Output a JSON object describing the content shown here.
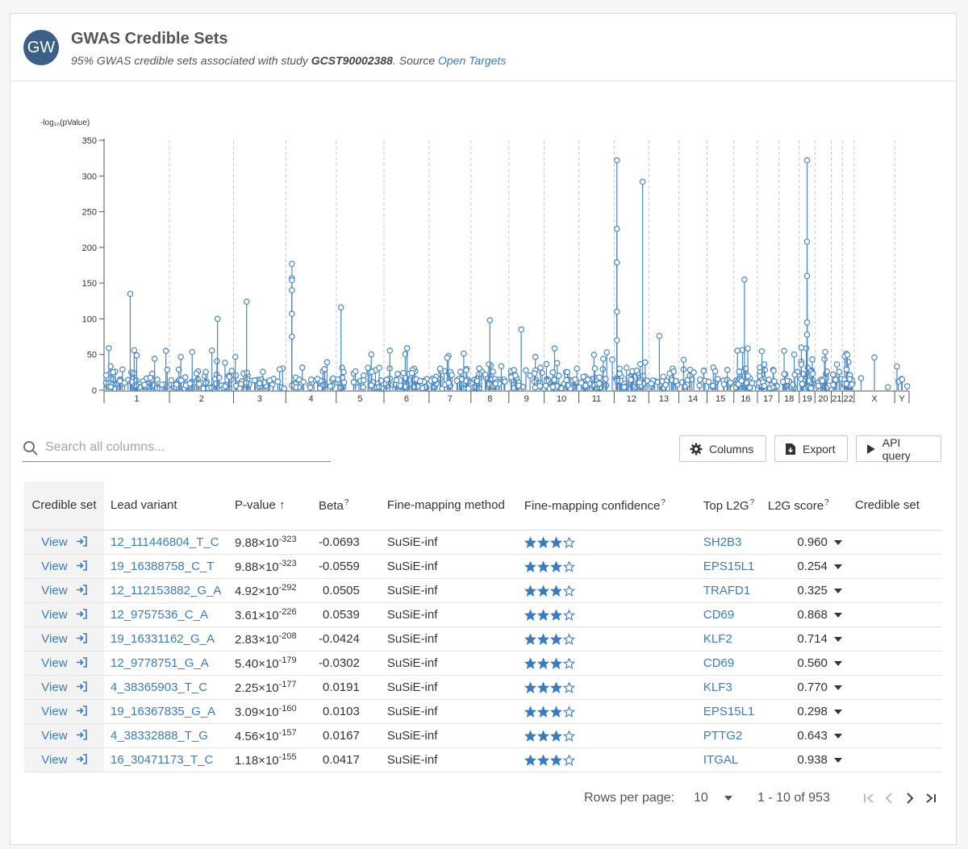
{
  "header": {
    "avatar_text": "GW",
    "title": "GWAS Credible Sets",
    "subtitle_prefix": "95% GWAS credible sets associated with study ",
    "study_id": "GCST90002388",
    "subtitle_source": ". Source ",
    "source_link": "Open Targets"
  },
  "chart_data": {
    "type": "scatter",
    "title": "",
    "ylabel": "-log₁₀(pValue)",
    "ylim": [
      0,
      350
    ],
    "yticks": [
      0,
      50,
      100,
      150,
      200,
      250,
      300,
      350
    ],
    "chromosomes": [
      "1",
      "2",
      "3",
      "4",
      "5",
      "6",
      "7",
      "8",
      "9",
      "10",
      "11",
      "12",
      "13",
      "14",
      "15",
      "16",
      "17",
      "18",
      "19",
      "20",
      "21",
      "22",
      "X",
      "Y"
    ],
    "notable_peaks": [
      {
        "chromosome": "12",
        "value": 322
      },
      {
        "chromosome": "12",
        "value": 292
      },
      {
        "chromosome": "12",
        "value": 226
      },
      {
        "chromosome": "12",
        "value": 179
      },
      {
        "chromosome": "12",
        "value": 110
      },
      {
        "chromosome": "12",
        "value": 70
      },
      {
        "chromosome": "19",
        "value": 322
      },
      {
        "chromosome": "19",
        "value": 208
      },
      {
        "chromosome": "19",
        "value": 160
      },
      {
        "chromosome": "19",
        "value": 95
      },
      {
        "chromosome": "19",
        "value": 78
      },
      {
        "chromosome": "4",
        "value": 177
      },
      {
        "chromosome": "4",
        "value": 157
      },
      {
        "chromosome": "4",
        "value": 154
      },
      {
        "chromosome": "4",
        "value": 140
      },
      {
        "chromosome": "4",
        "value": 107
      },
      {
        "chromosome": "4",
        "value": 75
      },
      {
        "chromosome": "16",
        "value": 155
      },
      {
        "chromosome": "1",
        "value": 135
      },
      {
        "chromosome": "3",
        "value": 124
      },
      {
        "chromosome": "5",
        "value": 116
      },
      {
        "chromosome": "8",
        "value": 98
      },
      {
        "chromosome": "2",
        "value": 100
      },
      {
        "chromosome": "9",
        "value": 85
      },
      {
        "chromosome": "13",
        "value": 76
      }
    ]
  },
  "search": {
    "placeholder": "Search all columns..."
  },
  "toolbar": {
    "columns_label": "Columns",
    "export_label": "Export",
    "api_label": "API query"
  },
  "table": {
    "headers": {
      "credible_set": "Credible set",
      "lead_variant": "Lead variant",
      "p_value": "P-value",
      "beta": "Beta",
      "method": "Fine-mapping method",
      "confidence": "Fine-mapping confidence",
      "top_l2g": "Top L2G",
      "l2g_score": "L2G score",
      "credible_set_2": "Credible set"
    },
    "help_mark": "?",
    "sort_arrow": "↑",
    "rows": [
      {
        "view": "View",
        "variant": "12_111446804_T_C",
        "p_mant": "9.88×10",
        "p_exp": "-323",
        "beta": "-0.0693",
        "method": "SuSiE-inf",
        "stars": 3,
        "gene": "SH2B3",
        "score": "0.960"
      },
      {
        "view": "View",
        "variant": "19_16388758_C_T",
        "p_mant": "9.88×10",
        "p_exp": "-323",
        "beta": "-0.0559",
        "method": "SuSiE-inf",
        "stars": 3,
        "gene": "EPS15L1",
        "score": "0.254"
      },
      {
        "view": "View",
        "variant": "12_112153882_G_A",
        "p_mant": "4.92×10",
        "p_exp": "-292",
        "beta": "0.0505",
        "method": "SuSiE-inf",
        "stars": 3,
        "gene": "TRAFD1",
        "score": "0.325"
      },
      {
        "view": "View",
        "variant": "12_9757536_C_A",
        "p_mant": "3.61×10",
        "p_exp": "-226",
        "beta": "0.0539",
        "method": "SuSiE-inf",
        "stars": 3,
        "gene": "CD69",
        "score": "0.868"
      },
      {
        "view": "View",
        "variant": "19_16331162_G_A",
        "p_mant": "2.83×10",
        "p_exp": "-208",
        "beta": "-0.0424",
        "method": "SuSiE-inf",
        "stars": 3,
        "gene": "KLF2",
        "score": "0.714"
      },
      {
        "view": "View",
        "variant": "12_9778751_G_A",
        "p_mant": "5.40×10",
        "p_exp": "-179",
        "beta": "-0.0302",
        "method": "SuSiE-inf",
        "stars": 3,
        "gene": "CD69",
        "score": "0.560"
      },
      {
        "view": "View",
        "variant": "4_38365903_T_C",
        "p_mant": "2.25×10",
        "p_exp": "-177",
        "beta": "0.0191",
        "method": "SuSiE-inf",
        "stars": 3,
        "gene": "KLF3",
        "score": "0.770"
      },
      {
        "view": "View",
        "variant": "19_16367835_G_A",
        "p_mant": "3.09×10",
        "p_exp": "-160",
        "beta": "0.0103",
        "method": "SuSiE-inf",
        "stars": 3,
        "gene": "EPS15L1",
        "score": "0.298"
      },
      {
        "view": "View",
        "variant": "4_38332888_T_G",
        "p_mant": "4.56×10",
        "p_exp": "-157",
        "beta": "0.0167",
        "method": "SuSiE-inf",
        "stars": 3,
        "gene": "PTTG2",
        "score": "0.643"
      },
      {
        "view": "View",
        "variant": "16_30471173_T_C",
        "p_mant": "1.18×10",
        "p_exp": "-155",
        "beta": "0.0417",
        "method": "SuSiE-inf",
        "stars": 3,
        "gene": "ITGAL",
        "score": "0.938"
      }
    ]
  },
  "pagination": {
    "rows_per_page_label": "Rows per page:",
    "rows_per_page_value": "10",
    "range_text": "1 - 10 of 953"
  },
  "colors": {
    "accent": "#3a7cc2",
    "avatar": "#3b5f87",
    "plot": "#4a88c7"
  }
}
